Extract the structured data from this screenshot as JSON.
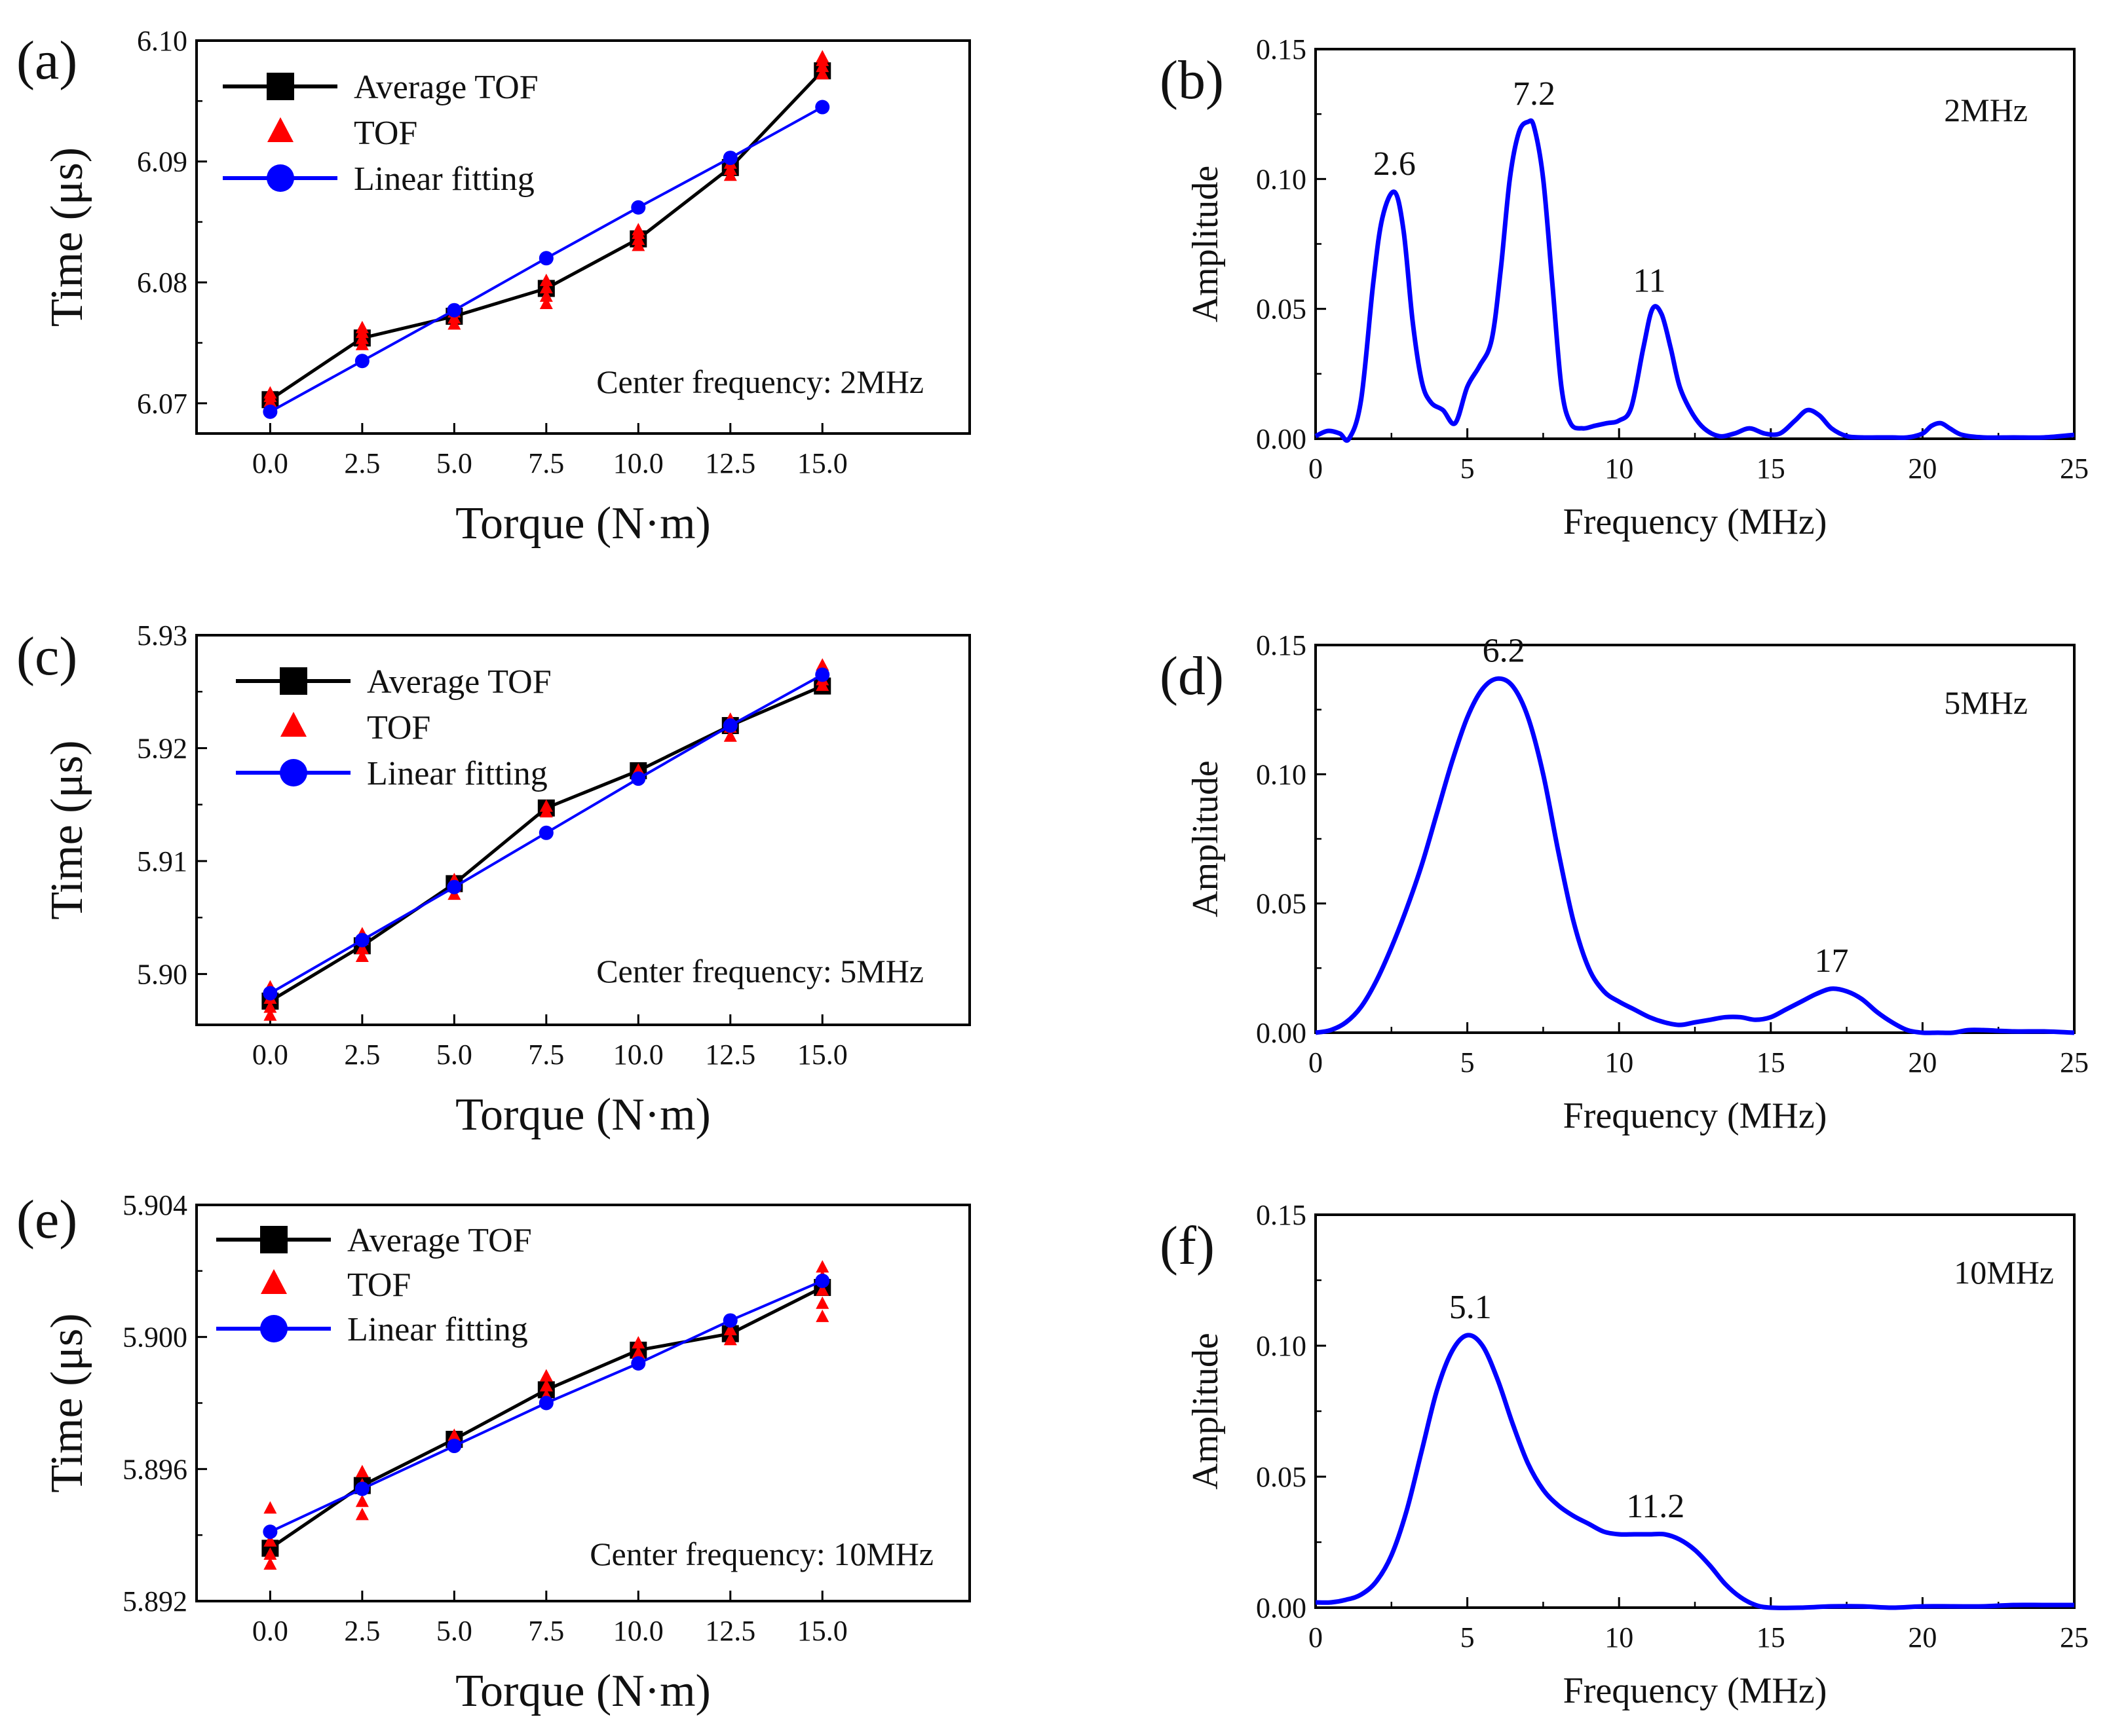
{
  "chart_data": [
    {
      "id": "a",
      "type": "scatter",
      "panel_label": "(a)",
      "xlabel": "Torque (N·m)",
      "ylabel": "Time (μs)",
      "xlim": [
        -2,
        19
      ],
      "ylim": [
        6.0675,
        6.1
      ],
      "xticks": [
        0,
        2.5,
        5,
        7.5,
        10,
        12.5,
        15
      ],
      "xtick_labels": [
        "0.0",
        "2.5",
        "5.0",
        "7.5",
        "10.0",
        "12.5",
        "15.0"
      ],
      "yticks": [
        6.07,
        6.08,
        6.09,
        6.1
      ],
      "ytick_labels": [
        "6.07",
        "6.08",
        "6.09",
        "6.10"
      ],
      "note": "Center frequency: 2MHz",
      "legend_position": "top-left",
      "x": [
        0,
        2.5,
        5,
        7.5,
        10,
        12.5,
        15
      ],
      "series": [
        {
          "name": "Average TOF",
          "color": "#000000",
          "marker": "square",
          "line": true,
          "values": [
            6.0703,
            6.0754,
            6.0772,
            6.0795,
            6.0836,
            6.0895,
            6.0975
          ]
        },
        {
          "name": "TOF",
          "color": "#ff0000",
          "marker": "triangle",
          "line": false,
          "points": [
            [
              0,
              6.0697
            ],
            [
              0,
              6.0701
            ],
            [
              0,
              6.0705
            ],
            [
              0,
              6.0708
            ],
            [
              2.5,
              6.0748
            ],
            [
              2.5,
              6.0753
            ],
            [
              2.5,
              6.0758
            ],
            [
              2.5,
              6.0762
            ],
            [
              5,
              6.0765
            ],
            [
              5,
              6.077
            ],
            [
              5,
              6.0775
            ],
            [
              7.5,
              6.0782
            ],
            [
              7.5,
              6.0788
            ],
            [
              7.5,
              6.0795
            ],
            [
              7.5,
              6.0801
            ],
            [
              10,
              6.083
            ],
            [
              10,
              6.0835
            ],
            [
              10,
              6.084
            ],
            [
              10,
              6.0843
            ],
            [
              12.5,
              6.0888
            ],
            [
              12.5,
              6.0893
            ],
            [
              12.5,
              6.0898
            ],
            [
              15,
              6.0972
            ],
            [
              15,
              6.0978
            ],
            [
              15,
              6.0983
            ],
            [
              15,
              6.0986
            ]
          ]
        },
        {
          "name": "Linear fitting",
          "color": "#0000ff",
          "marker": "circle",
          "line": true,
          "values": [
            6.0693,
            6.0735,
            6.0777,
            6.082,
            6.0862,
            6.0903,
            6.0945
          ]
        }
      ]
    },
    {
      "id": "b",
      "type": "line",
      "panel_label": "(b)",
      "xlabel": "Frequency (MHz)",
      "ylabel": "Amplitude",
      "xlim": [
        0,
        25
      ],
      "ylim": [
        0,
        0.15
      ],
      "xticks": [
        0,
        5,
        10,
        15,
        20,
        25
      ],
      "xtick_labels": [
        "0",
        "5",
        "10",
        "15",
        "20",
        "25"
      ],
      "yticks": [
        0,
        0.05,
        0.1,
        0.15
      ],
      "ytick_labels": [
        "0.00",
        "0.05",
        "0.10",
        "0.15"
      ],
      "note": "2MHz",
      "series": [
        {
          "color": "#0000ff",
          "x": [
            0,
            0.4,
            0.8,
            1.1,
            1.5,
            1.9,
            2.2,
            2.6,
            2.9,
            3.2,
            3.5,
            3.8,
            4.2,
            4.6,
            5.0,
            5.4,
            5.8,
            6.1,
            6.4,
            6.7,
            7.0,
            7.2,
            7.5,
            7.8,
            8.1,
            8.4,
            8.8,
            9.2,
            9.6,
            10.0,
            10.4,
            10.8,
            11.1,
            11.4,
            11.7,
            12.0,
            12.4,
            12.8,
            13.3,
            13.8,
            14.3,
            14.8,
            15.3,
            15.8,
            16.2,
            16.6,
            17.0,
            17.5,
            18.0,
            18.5,
            19.0,
            19.5,
            20.0,
            20.3,
            20.6,
            20.9,
            21.3,
            22.0,
            23.0,
            24.0,
            25.0
          ],
          "y": [
            0.001,
            0.003,
            0.002,
            0,
            0.015,
            0.06,
            0.085,
            0.095,
            0.08,
            0.045,
            0.022,
            0.014,
            0.011,
            0.006,
            0.02,
            0.028,
            0.038,
            0.065,
            0.1,
            0.118,
            0.122,
            0.12,
            0.1,
            0.06,
            0.02,
            0.006,
            0.004,
            0.005,
            0.006,
            0.007,
            0.012,
            0.035,
            0.05,
            0.048,
            0.035,
            0.02,
            0.01,
            0.004,
            0.001,
            0.002,
            0.004,
            0.002,
            0.002,
            0.007,
            0.011,
            0.009,
            0.004,
            0.001,
            0.0005,
            0.0005,
            0.0005,
            0.0005,
            0.002,
            0.005,
            0.006,
            0.004,
            0.0015,
            0.0005,
            0.0005,
            0.0005,
            0.0015
          ]
        }
      ],
      "peaks": [
        {
          "x": 2.6,
          "y": 0.095,
          "label": "2.6"
        },
        {
          "x": 7.2,
          "y": 0.122,
          "label": "7.2"
        },
        {
          "x": 11,
          "y": 0.05,
          "label": "11"
        }
      ]
    },
    {
      "id": "c",
      "type": "scatter",
      "panel_label": "(c)",
      "xlabel": "Torque (N·m)",
      "ylabel": "Time (μs)",
      "xlim": [
        -2,
        19
      ],
      "ylim": [
        5.8955,
        5.93
      ],
      "xticks": [
        0,
        2.5,
        5,
        7.5,
        10,
        12.5,
        15
      ],
      "xtick_labels": [
        "0.0",
        "2.5",
        "5.0",
        "7.5",
        "10.0",
        "12.5",
        "15.0"
      ],
      "yticks": [
        5.9,
        5.91,
        5.92,
        5.93
      ],
      "ytick_labels": [
        "5.90",
        "5.91",
        "5.92",
        "5.93"
      ],
      "note": "Center frequency: 5MHz",
      "legend_position": "top-left",
      "x": [
        0,
        2.5,
        5,
        7.5,
        10,
        12.5,
        15
      ],
      "series": [
        {
          "name": "Average TOF",
          "color": "#000000",
          "marker": "square",
          "line": true,
          "values": [
            5.8976,
            5.9025,
            5.908,
            5.9147,
            5.918,
            5.922,
            5.9255
          ]
        },
        {
          "name": "TOF",
          "color": "#ff0000",
          "marker": "triangle",
          "line": false,
          "points": [
            [
              0,
              5.8963
            ],
            [
              0,
              5.897
            ],
            [
              0,
              5.8978
            ],
            [
              0,
              5.8988
            ],
            [
              2.5,
              5.9015
            ],
            [
              2.5,
              5.9022
            ],
            [
              2.5,
              5.903
            ],
            [
              2.5,
              5.9035
            ],
            [
              5,
              5.907
            ],
            [
              5,
              5.9077
            ],
            [
              5,
              5.9083
            ],
            [
              7.5,
              5.9143
            ],
            [
              7.5,
              5.9148
            ],
            [
              10,
              5.9176
            ],
            [
              10,
              5.918
            ],
            [
              12.5,
              5.921
            ],
            [
              12.5,
              5.9218
            ],
            [
              12.5,
              5.9225
            ],
            [
              15,
              5.9255
            ],
            [
              15,
              5.926
            ],
            [
              15,
              5.9268
            ],
            [
              15,
              5.9273
            ]
          ]
        },
        {
          "name": "Linear fitting",
          "color": "#0000ff",
          "marker": "circle",
          "line": true,
          "values": [
            5.8983,
            5.903,
            5.9077,
            5.9125,
            5.9173,
            5.922,
            5.9265
          ]
        }
      ]
    },
    {
      "id": "d",
      "type": "line",
      "panel_label": "(d)",
      "xlabel": "Frequency (MHz)",
      "ylabel": "Amplitude",
      "xlim": [
        0,
        25
      ],
      "ylim": [
        0,
        0.15
      ],
      "xticks": [
        0,
        5,
        10,
        15,
        20,
        25
      ],
      "xtick_labels": [
        "0",
        "5",
        "10",
        "15",
        "20",
        "25"
      ],
      "yticks": [
        0,
        0.05,
        0.1,
        0.15
      ],
      "ytick_labels": [
        "0.00",
        "0.05",
        "0.10",
        "0.15"
      ],
      "note": "5MHz",
      "series": [
        {
          "color": "#0000ff",
          "x": [
            0,
            0.5,
            1.0,
            1.5,
            2.0,
            2.5,
            3.0,
            3.5,
            4.0,
            4.5,
            5.0,
            5.5,
            6.0,
            6.5,
            7.0,
            7.5,
            8.0,
            8.5,
            9.0,
            9.5,
            10.0,
            10.5,
            11.0,
            11.5,
            12.0,
            12.5,
            13.0,
            13.5,
            14.0,
            14.5,
            15.0,
            15.5,
            16.0,
            16.5,
            17.0,
            17.5,
            18.0,
            18.5,
            19.0,
            19.5,
            20.0,
            20.5,
            21.0,
            21.5,
            22.0,
            23.0,
            24.0,
            25.0
          ],
          "y": [
            0,
            0.001,
            0.004,
            0.01,
            0.02,
            0.033,
            0.048,
            0.065,
            0.085,
            0.105,
            0.122,
            0.133,
            0.137,
            0.134,
            0.122,
            0.1,
            0.07,
            0.043,
            0.025,
            0.016,
            0.012,
            0.009,
            0.006,
            0.004,
            0.003,
            0.004,
            0.005,
            0.006,
            0.006,
            0.005,
            0.006,
            0.009,
            0.012,
            0.015,
            0.017,
            0.016,
            0.013,
            0.008,
            0.004,
            0.001,
            0,
            0,
            0,
            0.001,
            0.001,
            0.0005,
            0.0005,
            0
          ]
        }
      ],
      "peaks": [
        {
          "x": 6.2,
          "y": 0.137,
          "label": "6.2"
        },
        {
          "x": 17,
          "y": 0.017,
          "label": "17"
        }
      ]
    },
    {
      "id": "e",
      "type": "scatter",
      "panel_label": "(e)",
      "xlabel": "Torque (N·m)",
      "ylabel": "Time (μs)",
      "xlim": [
        -2,
        19
      ],
      "ylim": [
        5.892,
        5.904
      ],
      "xticks": [
        0,
        2.5,
        5,
        7.5,
        10,
        12.5,
        15
      ],
      "xtick_labels": [
        "0.0",
        "2.5",
        "5.0",
        "7.5",
        "10.0",
        "12.5",
        "15.0"
      ],
      "yticks": [
        5.892,
        5.896,
        5.9,
        5.904
      ],
      "ytick_labels": [
        "5.892",
        "5.896",
        "5.900",
        "5.904"
      ],
      "note": "Center frequency: 10MHz",
      "legend_position": "top-left",
      "x": [
        0,
        2.5,
        5,
        7.5,
        10,
        12.5,
        15
      ],
      "series": [
        {
          "name": "Average TOF",
          "color": "#000000",
          "marker": "square",
          "line": true,
          "values": [
            5.8936,
            5.8955,
            5.8969,
            5.8984,
            5.8996,
            5.9001,
            5.9015
          ]
        },
        {
          "name": "TOF",
          "color": "#ff0000",
          "marker": "triangle",
          "line": false,
          "points": [
            [
              0,
              5.8931
            ],
            [
              0,
              5.8934
            ],
            [
              0,
              5.8938
            ],
            [
              0,
              5.8948
            ],
            [
              2.5,
              5.8946
            ],
            [
              2.5,
              5.895
            ],
            [
              2.5,
              5.8955
            ],
            [
              2.5,
              5.8959
            ],
            [
              5,
              5.8968
            ],
            [
              5,
              5.897
            ],
            [
              7.5,
              5.8982
            ],
            [
              7.5,
              5.8985
            ],
            [
              7.5,
              5.8988
            ],
            [
              10,
              5.8995
            ],
            [
              10,
              5.8998
            ],
            [
              12.5,
              5.8999
            ],
            [
              12.5,
              5.9002
            ],
            [
              15,
              5.9006
            ],
            [
              15,
              5.901
            ],
            [
              15,
              5.9014
            ],
            [
              15,
              5.9018
            ],
            [
              15,
              5.9021
            ]
          ]
        },
        {
          "name": "Linear fitting",
          "color": "#0000ff",
          "marker": "circle",
          "line": true,
          "values": [
            5.8941,
            5.8954,
            5.8967,
            5.898,
            5.8992,
            5.9005,
            5.9017
          ]
        }
      ]
    },
    {
      "id": "f",
      "type": "line",
      "panel_label": "(f)",
      "xlabel": "Frequency (MHz)",
      "ylabel": "Amplitude",
      "xlim": [
        0,
        25
      ],
      "ylim": [
        0,
        0.15
      ],
      "xticks": [
        0,
        5,
        10,
        15,
        20,
        25
      ],
      "xtick_labels": [
        "0",
        "5",
        "10",
        "15",
        "20",
        "25"
      ],
      "yticks": [
        0,
        0.05,
        0.1,
        0.15
      ],
      "ytick_labels": [
        "0.00",
        "0.05",
        "0.10",
        "0.15"
      ],
      "note": "10MHz",
      "series": [
        {
          "color": "#0000ff",
          "x": [
            0,
            0.5,
            1.0,
            1.5,
            2.0,
            2.5,
            3.0,
            3.5,
            4.0,
            4.5,
            5.0,
            5.5,
            6.0,
            6.5,
            7.0,
            7.5,
            8.0,
            8.5,
            9.0,
            9.5,
            10.0,
            10.5,
            11.0,
            11.5,
            12.0,
            12.5,
            13.0,
            13.5,
            14.0,
            14.5,
            15.0,
            16.0,
            17.0,
            18.0,
            19.0,
            20.0,
            21.0,
            22.0,
            23.0,
            24.0,
            25.0
          ],
          "y": [
            0.002,
            0.002,
            0.003,
            0.005,
            0.01,
            0.02,
            0.037,
            0.06,
            0.083,
            0.098,
            0.104,
            0.1,
            0.087,
            0.07,
            0.055,
            0.045,
            0.039,
            0.035,
            0.032,
            0.029,
            0.028,
            0.028,
            0.028,
            0.028,
            0.026,
            0.022,
            0.016,
            0.009,
            0.004,
            0.001,
            0,
            0,
            0.0005,
            0.0005,
            0,
            0.0005,
            0.0005,
            0.0005,
            0.001,
            0.001,
            0.001
          ]
        }
      ],
      "peaks": [
        {
          "x": 5.1,
          "y": 0.104,
          "label": "5.1"
        },
        {
          "x": 11.2,
          "y": 0.028,
          "label": "11.2"
        }
      ]
    }
  ]
}
